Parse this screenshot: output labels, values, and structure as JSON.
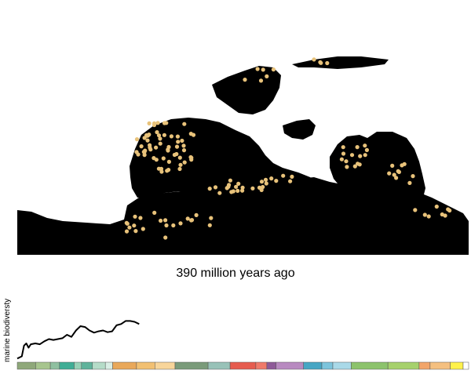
{
  "map": {
    "caption": "390 million years ago",
    "land_color": "#000000",
    "fossil_color": "#e8c27a"
  },
  "chart_data": {
    "type": "line",
    "ylabel": "marine biodiversty",
    "xlabel": "",
    "title": "",
    "series": [
      {
        "x": [
          0,
          0.01,
          0.015,
          0.02,
          0.025,
          0.03,
          0.04,
          0.05,
          0.06,
          0.07,
          0.08,
          0.1,
          0.11,
          0.12,
          0.13,
          0.14,
          0.15,
          0.16,
          0.17,
          0.18,
          0.19,
          0.2,
          0.21,
          0.22,
          0.23,
          0.24,
          0.25,
          0.26,
          0.27
        ],
        "values": [
          0.05,
          0.1,
          0.35,
          0.4,
          0.3,
          0.38,
          0.4,
          0.38,
          0.45,
          0.5,
          0.48,
          0.52,
          0.6,
          0.55,
          0.7,
          0.8,
          0.78,
          0.7,
          0.65,
          0.68,
          0.7,
          0.66,
          0.68,
          0.82,
          0.85,
          0.92,
          0.92,
          0.9,
          0.85
        ],
        "color": "#000000"
      }
    ],
    "timeline_colors": [
      "#8fa87a",
      "#a7c58e",
      "#8fc0a0",
      "#3fae96",
      "#97d2b7",
      "#5fb39b",
      "#b5dcc8",
      "#d9eee5",
      "#e9a85a",
      "#f2c072",
      "#f8d59a",
      "#7a9b7a",
      "#98c2b8",
      "#e65c4f",
      "#f07a6a",
      "#8e5a98",
      "#b88ac0",
      "#47a6c4",
      "#7cc4dc",
      "#a9d9e8",
      "#8cc36c",
      "#a6d16c",
      "#f2a56a",
      "#f5c080",
      "#fff24b",
      "#ffffff"
    ],
    "timeline_widths": [
      20,
      16,
      10,
      16,
      8,
      12,
      14,
      8,
      26,
      20,
      22,
      36,
      24,
      28,
      12,
      10,
      30,
      20,
      12,
      20,
      40,
      34,
      12,
      22,
      14,
      6
    ]
  }
}
